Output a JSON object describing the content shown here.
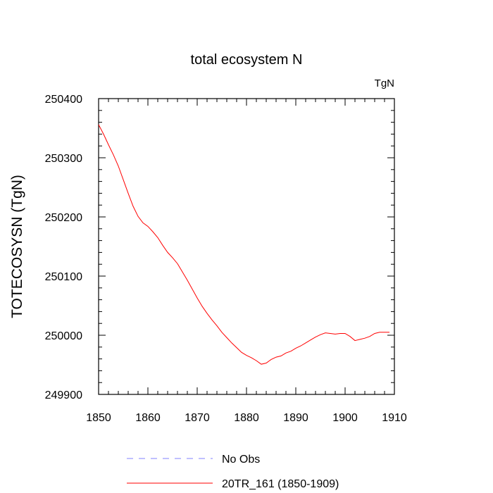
{
  "chart_data": {
    "type": "line",
    "title": "total ecosystem N",
    "units_label": "TgN",
    "xlabel": "",
    "ylabel": "TOTECOSYSN  (TgN)",
    "xlim": [
      1850,
      1910
    ],
    "ylim": [
      249900,
      250400
    ],
    "x_ticks": [
      1850,
      1860,
      1870,
      1880,
      1890,
      1900,
      1910
    ],
    "y_ticks": [
      249900,
      250000,
      250100,
      250200,
      250300,
      250400
    ],
    "x_tick_labels": [
      "1850",
      "1860",
      "1870",
      "1880",
      "1890",
      "1900",
      "1910"
    ],
    "y_tick_labels": [
      "249900",
      "250000",
      "250100",
      "250200",
      "250300",
      "250400"
    ],
    "legend_position": "bottom",
    "series": [
      {
        "name": "No Obs",
        "color": "#8080ff",
        "style": "dashed",
        "x": [],
        "values": []
      },
      {
        "name": "20TR_161 (1850-1909)",
        "color": "#ff0000",
        "style": "solid",
        "x": [
          1850,
          1851,
          1852,
          1853,
          1854,
          1855,
          1856,
          1857,
          1858,
          1859,
          1860,
          1861,
          1862,
          1863,
          1864,
          1865,
          1866,
          1867,
          1868,
          1869,
          1870,
          1871,
          1872,
          1873,
          1874,
          1875,
          1876,
          1877,
          1878,
          1879,
          1880,
          1881,
          1882,
          1883,
          1884,
          1885,
          1886,
          1887,
          1888,
          1889,
          1890,
          1891,
          1892,
          1893,
          1894,
          1895,
          1896,
          1897,
          1898,
          1899,
          1900,
          1901,
          1902,
          1903,
          1904,
          1905,
          1906,
          1907,
          1908,
          1909
        ],
        "values": [
          250356,
          250340,
          250322,
          250305,
          250286,
          250263,
          250240,
          250218,
          250201,
          250190,
          250184,
          250175,
          250165,
          250152,
          250140,
          250131,
          250121,
          250107,
          250093,
          250078,
          250063,
          250049,
          250037,
          250026,
          250016,
          250005,
          249996,
          249987,
          249979,
          249971,
          249966,
          249962,
          249957,
          249951,
          249953,
          249959,
          249963,
          249965,
          249970,
          249973,
          249978,
          249982,
          249987,
          249992,
          249997,
          250001,
          250004,
          250003,
          250002,
          250003,
          250003,
          249998,
          249991,
          249993,
          249995,
          249998,
          250003,
          250005,
          250005,
          250005
        ]
      }
    ]
  }
}
